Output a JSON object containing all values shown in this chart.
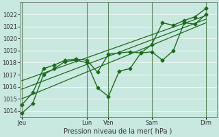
{
  "background_color": "#c8e8e0",
  "plot_bg_color": "#c8e8e0",
  "grid_color": "#ffffff",
  "line_color": "#1a6b1a",
  "vline_color": "#5a8a5a",
  "title": "Pression niveau de la mer( hPa )",
  "ylim": [
    1013.5,
    1023.0
  ],
  "yticks": [
    1014,
    1015,
    1016,
    1017,
    1018,
    1019,
    1020,
    1021,
    1022
  ],
  "x_day_labels": [
    "Jeu",
    "",
    "Lun",
    "Ven",
    "",
    "Sam",
    "",
    "Dim"
  ],
  "x_day_positions": [
    0,
    1.5,
    3,
    4,
    5,
    6,
    7,
    8.5
  ],
  "x_vlines": [
    0,
    3,
    4,
    6,
    8.5
  ],
  "xlim": [
    -0.1,
    9.0
  ],
  "series": [
    {
      "x": [
        0,
        0.5,
        1.0,
        1.5,
        2.0,
        2.5,
        3.0,
        3.5,
        4.0,
        4.5,
        5.0,
        5.5,
        6.0,
        6.5,
        7.0,
        7.5,
        8.0,
        8.5
      ],
      "y": [
        1013.8,
        1014.6,
        1017.0,
        1017.5,
        1018.1,
        1018.2,
        1018.0,
        1015.9,
        1015.2,
        1017.3,
        1017.5,
        1018.8,
        1018.9,
        1018.2,
        1019.0,
        1021.3,
        1021.2,
        1022.0
      ],
      "marker": "D",
      "markersize": 2.5,
      "linewidth": 1.0,
      "has_marker": true
    },
    {
      "x": [
        0,
        0.5,
        1.0,
        1.5,
        2.0,
        2.5,
        3.0,
        3.5,
        4.0,
        4.5,
        5.0,
        5.5,
        6.0,
        6.5,
        7.0,
        7.5,
        8.0,
        8.5
      ],
      "y": [
        1014.5,
        1015.5,
        1017.5,
        1017.8,
        1018.2,
        1018.3,
        1018.2,
        1017.2,
        1018.7,
        1018.8,
        1018.9,
        1018.8,
        1019.5,
        1021.3,
        1021.1,
        1021.5,
        1021.8,
        1022.5
      ],
      "marker": "D",
      "markersize": 2.5,
      "linewidth": 1.0,
      "has_marker": true
    },
    {
      "x": [
        0,
        8.5
      ],
      "y": [
        1015.0,
        1021.3
      ],
      "marker": null,
      "markersize": 0,
      "linewidth": 0.9,
      "has_marker": false
    },
    {
      "x": [
        0,
        8.5
      ],
      "y": [
        1015.8,
        1021.6
      ],
      "marker": null,
      "markersize": 0,
      "linewidth": 0.9,
      "has_marker": false
    },
    {
      "x": [
        0,
        8.5
      ],
      "y": [
        1016.5,
        1021.9
      ],
      "marker": null,
      "markersize": 0,
      "linewidth": 0.9,
      "has_marker": false
    }
  ],
  "tick_labelsize": 6,
  "xlabel_fontsize": 7,
  "tick_color": "#333333",
  "spine_color": "#666666"
}
